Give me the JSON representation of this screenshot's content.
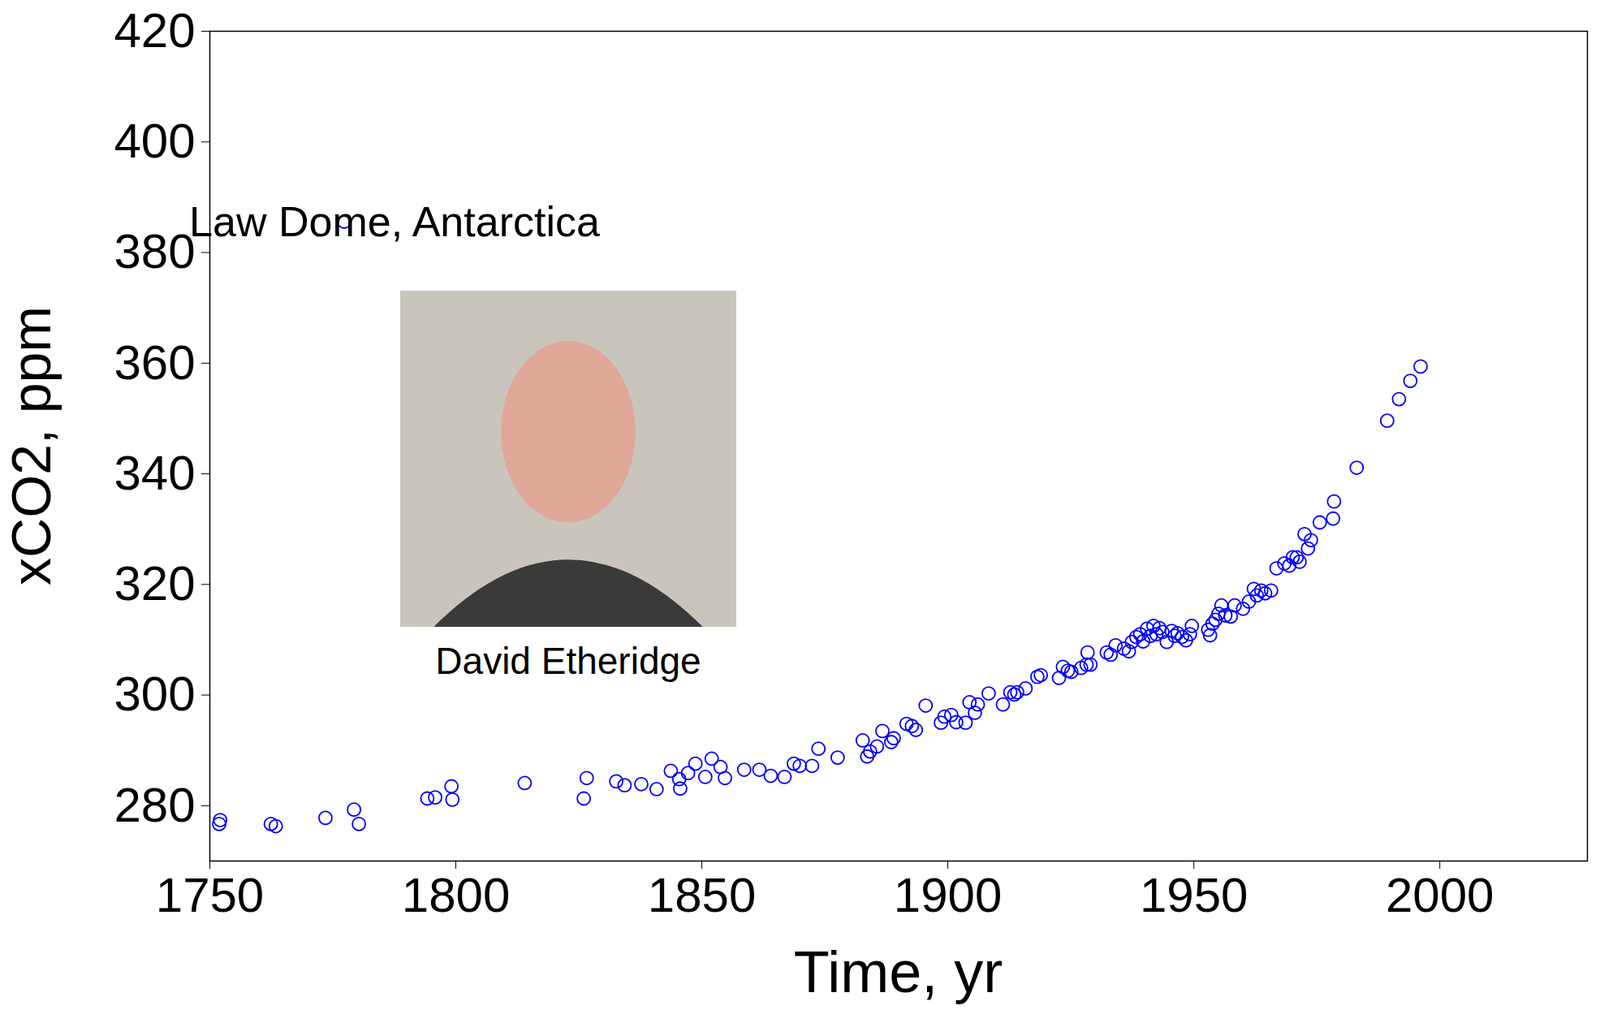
{
  "chart_data": {
    "type": "scatter",
    "x_label": "Time, yr",
    "y_label": "xCO2, ppm",
    "xlim": [
      1750,
      2030
    ],
    "ylim": [
      270,
      420
    ],
    "xticks": [
      1750,
      1800,
      1850,
      1900,
      1950,
      2000
    ],
    "yticks": [
      280,
      300,
      320,
      340,
      360,
      380,
      400,
      420
    ],
    "legend": "upper left",
    "image_caption": "David Etheridge",
    "series": [
      {
        "name": "Law Dome, Antarctica",
        "color": "#0000ff",
        "marker": "open circle",
        "x": [
          1751.9,
          1752.1,
          1762.4,
          1763.4,
          1773.5,
          1779.3,
          1780.3,
          1794.2,
          1795.8,
          1799.1,
          1799.3,
          1814.0,
          1826.0,
          1826.6,
          1832.6,
          1834.3,
          1837.7,
          1840.8,
          1843.7,
          1845.4,
          1845.6,
          1847.2,
          1848.7,
          1850.7,
          1852.0,
          1853.8,
          1854.7,
          1858.6,
          1861.7,
          1864.0,
          1866.8,
          1868.7,
          1869.9,
          1872.4,
          1873.7,
          1877.6,
          1882.7,
          1883.6,
          1884.2,
          1885.6,
          1886.7,
          1888.5,
          1889.0,
          1891.6,
          1892.7,
          1893.5,
          1895.5,
          1898.6,
          1899.3,
          1900.7,
          1901.7,
          1903.6,
          1904.4,
          1905.5,
          1906.1,
          1908.3,
          1911.2,
          1912.7,
          1913.5,
          1914.1,
          1915.8,
          1918.2,
          1918.9,
          1922.6,
          1923.4,
          1924.4,
          1925.1,
          1927.1,
          1928.2,
          1928.4,
          1929.0,
          1932.3,
          1933.1,
          1934.1,
          1935.8,
          1936.8,
          1937.4,
          1938.3,
          1939.1,
          1939.7,
          1940.5,
          1941.2,
          1941.8,
          1942.4,
          1943.0,
          1943.6,
          1944.5,
          1945.5,
          1946.1,
          1946.7,
          1947.6,
          1948.4,
          1949.2,
          1949.6,
          1952.9,
          1953.3,
          1953.8,
          1954.4,
          1955.0,
          1955.6,
          1956.4,
          1957.5,
          1958.3,
          1960.0,
          1961.2,
          1962.2,
          1962.8,
          1963.7,
          1964.5,
          1965.7,
          1966.8,
          1968.4,
          1969.4,
          1970.1,
          1970.9,
          1971.5,
          1972.5,
          1973.2,
          1973.8,
          1975.6,
          1978.3,
          1978.5,
          1983.1,
          1989.3,
          1991.7,
          1994.0,
          1996.1
        ],
        "values": [
          276.7,
          277.4,
          276.7,
          276.3,
          277.8,
          279.3,
          276.7,
          281.3,
          281.5,
          283.5,
          281.1,
          284.1,
          281.3,
          285.0,
          284.4,
          283.7,
          283.9,
          283.0,
          286.3,
          284.8,
          283.1,
          285.9,
          287.6,
          285.2,
          288.5,
          287.0,
          285.0,
          286.5,
          286.5,
          285.4,
          285.2,
          287.6,
          287.2,
          287.2,
          290.3,
          288.7,
          291.8,
          288.9,
          289.8,
          290.7,
          293.5,
          291.5,
          292.2,
          294.8,
          294.4,
          293.7,
          298.1,
          295.0,
          296.1,
          296.4,
          295.1,
          295.0,
          298.7,
          296.8,
          298.3,
          300.3,
          298.3,
          300.5,
          300.1,
          300.5,
          301.2,
          303.3,
          303.6,
          303.1,
          305.1,
          304.4,
          304.2,
          304.9,
          305.5,
          307.7,
          305.5,
          307.7,
          307.3,
          309.0,
          308.4,
          307.9,
          309.6,
          310.5,
          311.0,
          309.7,
          312.0,
          310.7,
          312.5,
          311.0,
          312.1,
          311.4,
          309.6,
          311.6,
          310.7,
          311.2,
          310.5,
          309.9,
          311.0,
          312.5,
          311.8,
          310.8,
          312.9,
          313.6,
          314.7,
          316.2,
          314.4,
          314.2,
          316.2,
          315.6,
          316.9,
          319.2,
          318.0,
          318.9,
          318.4,
          318.9,
          322.9,
          323.8,
          323.4,
          324.9,
          324.9,
          324.1,
          329.1,
          326.5,
          328.0,
          331.2,
          331.9,
          335.0,
          341.1,
          349.6,
          353.5,
          356.8,
          359.4
        ]
      }
    ]
  }
}
